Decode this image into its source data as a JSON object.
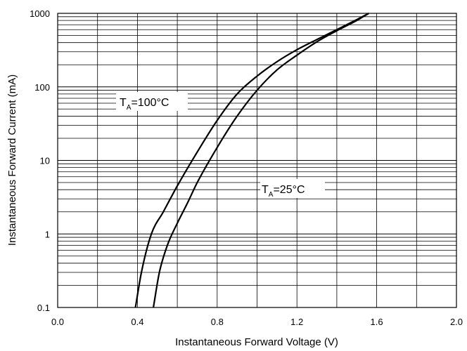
{
  "chart_data": {
    "type": "line",
    "xlabel": "Instantaneous Forward Voltage (V)",
    "ylabel": "Instantaneous Forward Current (mA)",
    "xlim": [
      0.0,
      2.0
    ],
    "ylim": [
      0.1,
      1000
    ],
    "yscale": "log",
    "grid": true,
    "x_ticks": [
      "0.0",
      "0.4",
      "0.8",
      "1.2",
      "1.6",
      "2.0"
    ],
    "y_ticks": [
      "0.1",
      "1",
      "10",
      "100",
      "1000"
    ],
    "series": [
      {
        "label_main": "T",
        "label_sub": "A",
        "label_rest": "=100°C",
        "x": [
          0.39,
          0.42,
          0.47,
          0.53,
          0.6,
          0.7,
          0.8,
          0.9,
          1.0,
          1.1,
          1.2,
          1.3,
          1.4,
          1.5,
          1.56
        ],
        "y": [
          0.1,
          0.3,
          1.0,
          2.0,
          4.5,
          13,
          35,
          80,
          140,
          220,
          320,
          440,
          600,
          820,
          1000
        ]
      },
      {
        "label_main": "T",
        "label_sub": "A",
        "label_rest": "=25°C",
        "x": [
          0.48,
          0.51,
          0.55,
          0.6,
          0.65,
          0.7,
          0.8,
          0.9,
          1.0,
          1.1,
          1.2,
          1.3,
          1.4,
          1.5,
          1.56
        ],
        "y": [
          0.1,
          0.3,
          0.7,
          1.4,
          2.6,
          5,
          15,
          40,
          90,
          170,
          270,
          410,
          580,
          800,
          1000
        ]
      }
    ]
  }
}
